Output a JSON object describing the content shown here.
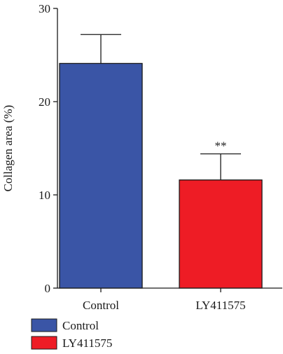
{
  "chart_data": {
    "type": "bar",
    "categories": [
      "Control",
      "LY411575"
    ],
    "values": [
      24.1,
      11.6
    ],
    "errors": [
      3.1,
      2.8
    ],
    "colors": [
      "#3a55a6",
      "#ee1c25"
    ],
    "ylabel": "Collagen area (%)",
    "ylim": [
      0,
      30
    ],
    "yticks": [
      "0",
      "10",
      "20",
      "30"
    ],
    "annotations": [
      "",
      "**"
    ],
    "grid": false,
    "legend": {
      "placement": "bottom-left",
      "entries": [
        {
          "label": "Control",
          "color": "#3a55a6"
        },
        {
          "label": "LY411575",
          "color": "#ee1c25"
        }
      ]
    }
  }
}
